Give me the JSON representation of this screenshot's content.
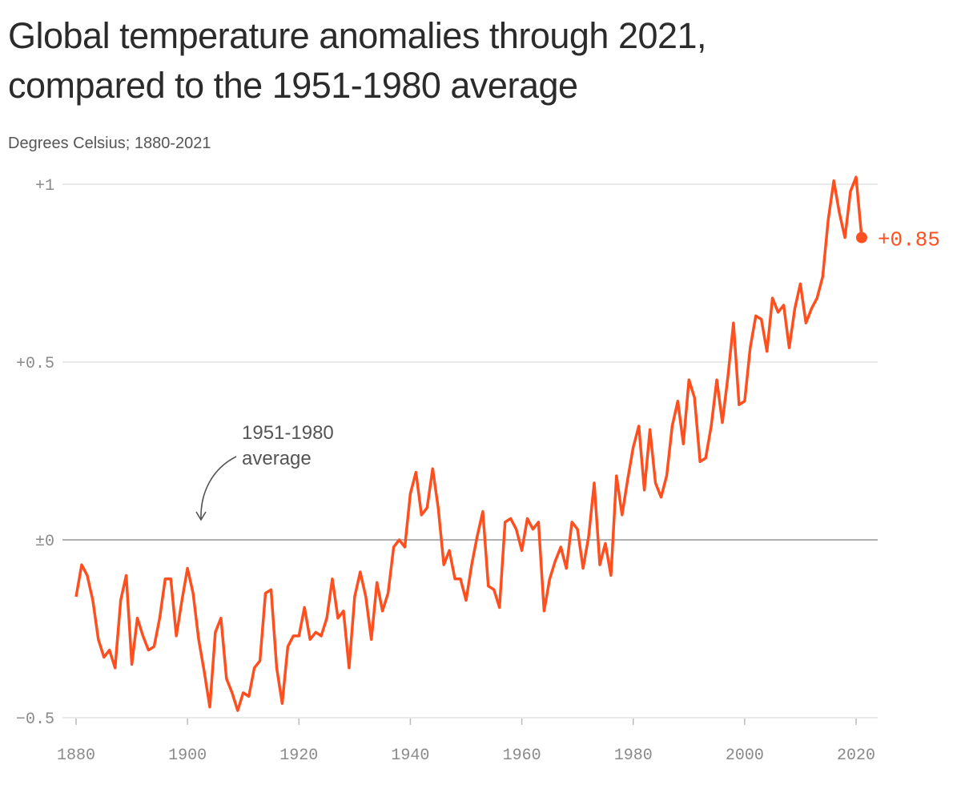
{
  "title_line1": "Global temperature anomalies through 2021,",
  "title_line2": "compared to the 1951-1980 average",
  "subtitle": "Degrees Celsius; 1880-2021",
  "chart_data": {
    "type": "line",
    "title": "Global temperature anomalies through 2021, compared to the 1951-1980 average",
    "subtitle": "Degrees Celsius; 1880-2021",
    "xlim": [
      1880,
      2021
    ],
    "ylim": [
      -0.5,
      1
    ],
    "x_ticks": [
      1880,
      1900,
      1920,
      1940,
      1960,
      1980,
      2000,
      2020
    ],
    "x_tick_labels": [
      "1880",
      "1900",
      "1920",
      "1940",
      "1960",
      "1980",
      "2000",
      "2020"
    ],
    "y_ticks": [
      1,
      0.5,
      0,
      -0.5
    ],
    "y_tick_labels": [
      "+1",
      "+0.5",
      "±0",
      "−0.5"
    ],
    "grid": "horizontal",
    "line_color": "#ff4f1f",
    "annotation": {
      "line1": "1951-1980",
      "line2": "average",
      "points_to": 0
    },
    "end_label": "+0.85",
    "start_year": 1880,
    "values": [
      -0.16,
      -0.07,
      -0.1,
      -0.17,
      -0.28,
      -0.33,
      -0.31,
      -0.36,
      -0.17,
      -0.1,
      -0.35,
      -0.22,
      -0.27,
      -0.31,
      -0.3,
      -0.22,
      -0.11,
      -0.11,
      -0.27,
      -0.17,
      -0.08,
      -0.15,
      -0.28,
      -0.37,
      -0.47,
      -0.26,
      -0.22,
      -0.39,
      -0.43,
      -0.48,
      -0.43,
      -0.44,
      -0.36,
      -0.34,
      -0.15,
      -0.14,
      -0.36,
      -0.46,
      -0.3,
      -0.27,
      -0.27,
      -0.19,
      -0.28,
      -0.26,
      -0.27,
      -0.22,
      -0.11,
      -0.22,
      -0.2,
      -0.36,
      -0.16,
      -0.09,
      -0.16,
      -0.28,
      -0.12,
      -0.2,
      -0.15,
      -0.02,
      0.0,
      -0.02,
      0.13,
      0.19,
      0.07,
      0.09,
      0.2,
      0.09,
      -0.07,
      -0.03,
      -0.11,
      -0.11,
      -0.17,
      -0.07,
      0.01,
      0.08,
      -0.13,
      -0.14,
      -0.19,
      0.05,
      0.06,
      0.03,
      -0.03,
      0.06,
      0.03,
      0.05,
      -0.2,
      -0.11,
      -0.06,
      -0.02,
      -0.08,
      0.05,
      0.03,
      -0.08,
      0.01,
      0.16,
      -0.07,
      -0.01,
      -0.1,
      0.18,
      0.07,
      0.17,
      0.26,
      0.32,
      0.14,
      0.31,
      0.16,
      0.12,
      0.18,
      0.32,
      0.39,
      0.27,
      0.45,
      0.4,
      0.22,
      0.23,
      0.32,
      0.45,
      0.33,
      0.46,
      0.61,
      0.38,
      0.39,
      0.54,
      0.63,
      0.62,
      0.53,
      0.68,
      0.64,
      0.66,
      0.54,
      0.65,
      0.72,
      0.61,
      0.65,
      0.68,
      0.74,
      0.9,
      1.01,
      0.92,
      0.85,
      0.98,
      1.02,
      0.85
    ]
  }
}
